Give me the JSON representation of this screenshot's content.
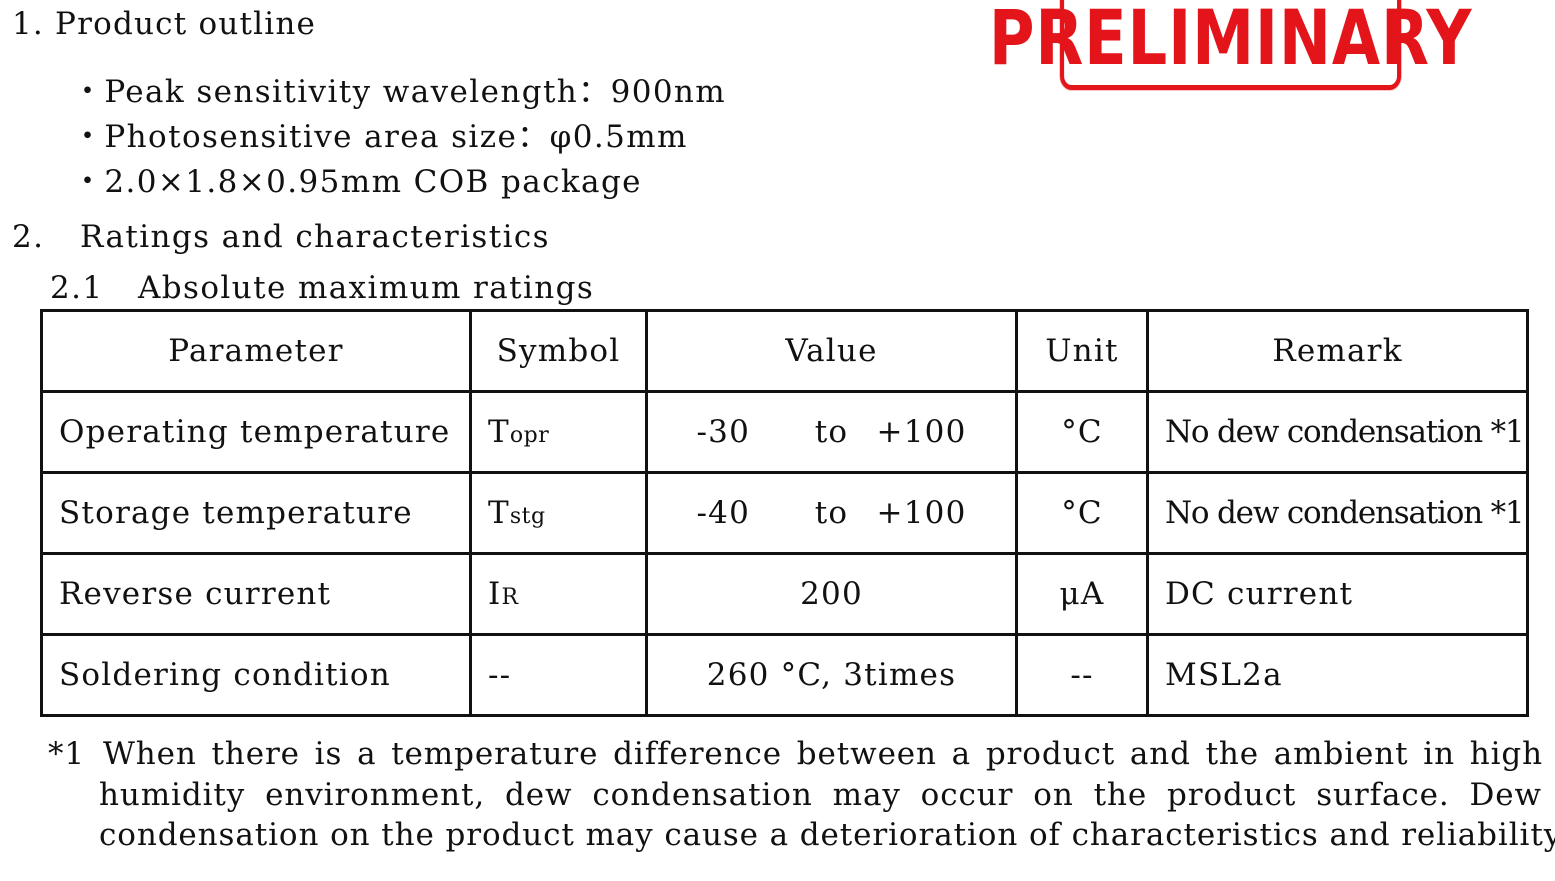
{
  "stamp": {
    "text": "PRELIMINARY",
    "color": "#e4141b"
  },
  "section1": {
    "title": "1. Product outline",
    "bullets": [
      "・Peak sensitivity wavelength：900nm",
      "・Photosensitive area size：φ0.5mm",
      "・2.0×1.8×0.95mm COB package"
    ]
  },
  "section2": {
    "number": "2.",
    "title": "Ratings and characteristics",
    "sub_number": "2.1",
    "sub_title": "Absolute maximum ratings"
  },
  "table": {
    "headers": [
      "Parameter",
      "Symbol",
      "Value",
      "Unit",
      "Remark"
    ],
    "rows": [
      {
        "parameter": "Operating temperature",
        "symbol_main": "T",
        "symbol_sub": "opr",
        "value_from": "-30",
        "value_to": "to",
        "value_end": "+100",
        "unit": "°C",
        "remark": "No dew condensation *1"
      },
      {
        "parameter": "Storage temperature",
        "symbol_main": "T",
        "symbol_sub": "stg",
        "value_from": "-40",
        "value_to": "to",
        "value_end": "+100",
        "unit": "°C",
        "remark": "No dew condensation *1"
      },
      {
        "parameter": "Reverse current",
        "symbol_main": "I",
        "symbol_sub": "R",
        "value": "200",
        "unit": "μA",
        "remark": "DC current"
      },
      {
        "parameter": "Soldering condition",
        "symbol": "--",
        "value": "260 °C, 3times",
        "unit": "--",
        "remark": "MSL2a"
      }
    ]
  },
  "footnote": {
    "marker": "*1",
    "line1": "When there is a temperature difference between a product and the ambient in high",
    "line2": "humidity environment, dew condensation may occur on the product surface. Dew",
    "line3": "condensation on the product may cause a deterioration of characteristics and reliability."
  }
}
